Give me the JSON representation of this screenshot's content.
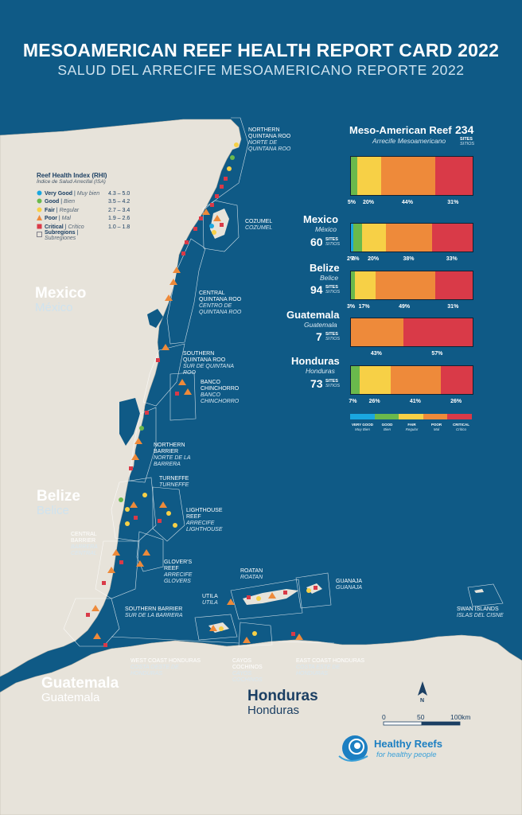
{
  "header": {
    "title": "MESOAMERICAN REEF HEALTH REPORT CARD 2022",
    "subtitle": "SALUD DEL ARRECIFE MESOAMERICANO REPORTE 2022"
  },
  "legend": {
    "title": "Reef Health Index (RHI)",
    "title_es": "Índice de Salud Arrecifal (ISA)",
    "items": [
      {
        "label": "Very Good",
        "label_es": "Muy bien",
        "range": "4.3 – 5.0",
        "color": "#1aa7e0",
        "shape": "circle"
      },
      {
        "label": "Good",
        "label_es": "Bien",
        "range": "3.5 – 4.2",
        "color": "#6ab94c",
        "shape": "circle"
      },
      {
        "label": "Fair",
        "label_es": "Regular",
        "range": "2.7 – 3.4",
        "color": "#f7d046",
        "shape": "circle"
      },
      {
        "label": "Poor",
        "label_es": "Mal",
        "range": "1.9 – 2.6",
        "color": "#ee8a3a",
        "shape": "triangle"
      },
      {
        "label": "Critical",
        "label_es": "Crítico",
        "range": "1.0 – 1.8",
        "color": "#d93a48",
        "shape": "square"
      },
      {
        "label": "Subregions",
        "label_es": "Subregiones",
        "range": "",
        "color": "#ffffff",
        "shape": "outline"
      }
    ]
  },
  "countries": [
    {
      "name": "Mexico",
      "name_es": "México"
    },
    {
      "name": "Belize",
      "name_es": "Belice"
    },
    {
      "name": "Guatemala",
      "name_es": "Guatemala"
    },
    {
      "name": "Honduras",
      "name_es": "Honduras"
    }
  ],
  "subregions": [
    {
      "name": "NORTHERN QUINTANA ROO",
      "name_es": "NORTE DE QUINTANA ROO"
    },
    {
      "name": "COZUMEL",
      "name_es": "COZUMEL"
    },
    {
      "name": "CENTRAL QUINTANA ROO",
      "name_es": "CENTRO DE QUINTANA ROO"
    },
    {
      "name": "SOUTHERN QUINTANA ROO",
      "name_es": "SUR DE QUINTANA ROO"
    },
    {
      "name": "BANCO CHINCHORRO",
      "name_es": "BANCO CHINCHORRO"
    },
    {
      "name": "NORTHERN BARRIER",
      "name_es": "NORTE DE LA BARRERA"
    },
    {
      "name": "TURNEFFE",
      "name_es": "TURNEFFE"
    },
    {
      "name": "LIGHTHOUSE REEF",
      "name_es": "ARRECIFE LIGHTHOUSE"
    },
    {
      "name": "CENTRAL BARRIER",
      "name_es": "BARRERA CENTRAL"
    },
    {
      "name": "GLOVER'S REEF",
      "name_es": "ARRECIFE GLOVERS"
    },
    {
      "name": "SOUTHERN BARRIER",
      "name_es": "SUR DE LA BARRERA"
    },
    {
      "name": "UTILA",
      "name_es": "UTILA"
    },
    {
      "name": "ROATAN",
      "name_es": "ROATAN"
    },
    {
      "name": "GUANAJA",
      "name_es": "GUANAJA"
    },
    {
      "name": "SWAN ISLANDS",
      "name_es": "ISLAS DEL CISNE"
    },
    {
      "name": "WEST COAST HONDURAS",
      "name_es": "COSTA OESTE DE HONDURAS"
    },
    {
      "name": "CAYOS COCHINOS",
      "name_es": "CAYOS COCHINOS"
    },
    {
      "name": "EAST COAST HONDURAS",
      "name_es": "COSTA ESTE DE HONDURAS"
    }
  ],
  "stats": {
    "sites_label": "SITES",
    "sites_label_es": "SITIOS",
    "regions": [
      {
        "name": "Meso-American Reef",
        "name_es": "Arrecife Mesoamericano",
        "sites": "234",
        "shares": [
          0,
          5,
          20,
          44,
          31
        ],
        "labels": [
          "5%",
          "20%",
          "44%",
          "31%"
        ]
      },
      {
        "name": "Mexico",
        "name_es": "México",
        "sites": "60",
        "shares": [
          2,
          7,
          20,
          38,
          33
        ],
        "labels": [
          "2%",
          "7%",
          "20%",
          "38%",
          "33%"
        ]
      },
      {
        "name": "Belize",
        "name_es": "Belice",
        "sites": "94",
        "shares": [
          0,
          3,
          17,
          49,
          31
        ],
        "labels": [
          "3%",
          "17%",
          "49%",
          "31%"
        ]
      },
      {
        "name": "Guatemala",
        "name_es": "Guatemala",
        "sites": "7",
        "shares": [
          0,
          0,
          0,
          43,
          57
        ],
        "labels": [
          "43%",
          "57%"
        ]
      },
      {
        "name": "Honduras",
        "name_es": "Honduras",
        "sites": "73",
        "shares": [
          0,
          7,
          26,
          41,
          26
        ],
        "labels": [
          "7%",
          "26%",
          "41%",
          "26%"
        ]
      }
    ],
    "scale": [
      {
        "label": "VERY GOOD",
        "label_es": "Muy Bien",
        "color": "#1aa7e0"
      },
      {
        "label": "GOOD",
        "label_es": "Bien",
        "color": "#6ab94c"
      },
      {
        "label": "FAIR",
        "label_es": "Regular",
        "color": "#f7d046"
      },
      {
        "label": "POOR",
        "label_es": "Mal",
        "color": "#ee8a3a"
      },
      {
        "label": "CRITICAL",
        "label_es": "Crítico",
        "color": "#d93a48"
      }
    ]
  },
  "scalebar": {
    "ticks": [
      "0",
      "50",
      "100km"
    ]
  },
  "north_label": "N",
  "logo": {
    "name": "Healthy Reefs",
    "tagline": "for healthy people"
  },
  "colors": {
    "sea": "#0f5a86",
    "land": "#e7e3da",
    "very_good": "#1aa7e0",
    "good": "#6ab94c",
    "fair": "#f7d046",
    "poor": "#ee8a3a",
    "critical": "#d93a48"
  }
}
